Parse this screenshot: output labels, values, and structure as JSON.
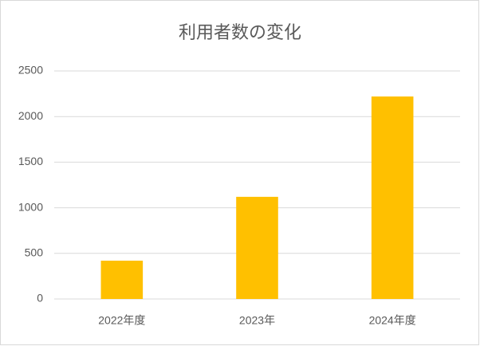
{
  "chart_data": {
    "type": "bar",
    "title": "利用者数の変化",
    "categories": [
      "2022年度",
      "2023年",
      "2024年度"
    ],
    "values": [
      420,
      1120,
      2220
    ],
    "color": "#ffc000",
    "ylim": [
      0,
      2500
    ],
    "yticks": [
      0,
      500,
      1000,
      1500,
      2000,
      2500
    ],
    "grid": true
  }
}
